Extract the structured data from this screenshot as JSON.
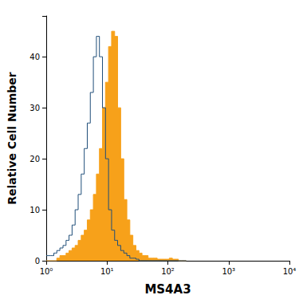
{
  "chart_data": {
    "type": "line",
    "x_label": "MS4A3",
    "y_label": "Relative Cell Number",
    "log": "x",
    "grid": false,
    "xlim": [
      1,
      10000
    ],
    "xticks": [
      {
        "value": 1,
        "label": "10⁰"
      },
      {
        "value": 10,
        "label": "10¹"
      },
      {
        "value": 100,
        "label": "10²"
      },
      {
        "value": 1000,
        "label": "10³"
      },
      {
        "value": 10000,
        "label": "10⁴"
      }
    ],
    "ylim": [
      0,
      48
    ],
    "yticks": [
      0,
      10,
      20,
      30,
      40
    ],
    "x": [
      1,
      1.12,
      1.26,
      1.41,
      1.58,
      1.78,
      2,
      2.24,
      2.51,
      2.82,
      3.16,
      3.55,
      3.98,
      4.47,
      5.01,
      5.62,
      6.31,
      7.08,
      7.94,
      8.91,
      10,
      11.2,
      12.6,
      14.1,
      15.8,
      17.8,
      20,
      22.4,
      25.1,
      28.2,
      31.6,
      35.5,
      39.8,
      44.7,
      50.1,
      56.2,
      63.1,
      70.8,
      79.4,
      89.1,
      100,
      112,
      126,
      141,
      158,
      178,
      200
    ],
    "series": [
      {
        "type": "area",
        "color": "#f7a11a",
        "values": [
          0,
          0,
          0,
          0,
          0.5,
          1,
          1,
          1.5,
          2,
          2.5,
          3,
          4,
          5,
          6,
          8,
          10,
          13,
          17,
          22,
          30,
          35,
          42,
          45,
          44,
          30,
          20,
          12,
          8,
          5,
          3,
          2,
          1.5,
          1,
          1,
          0.5,
          0.5,
          0.5,
          0.3,
          0.3,
          0.3,
          0.3,
          0.5,
          0.3,
          0.3,
          0,
          0,
          0
        ]
      },
      {
        "type": "line",
        "color": "#1f4e79",
        "values": [
          1,
          1,
          1,
          1.5,
          2,
          2.5,
          3,
          4,
          5,
          7,
          10,
          13,
          17,
          22,
          27,
          33,
          40,
          44,
          40,
          30,
          20,
          10,
          6,
          4,
          3,
          2,
          1.5,
          1,
          0.5,
          0.5,
          0.3,
          0,
          0,
          0,
          0,
          0,
          0,
          0,
          0,
          0,
          0,
          0,
          0,
          0,
          0,
          0,
          0
        ]
      }
    ]
  }
}
